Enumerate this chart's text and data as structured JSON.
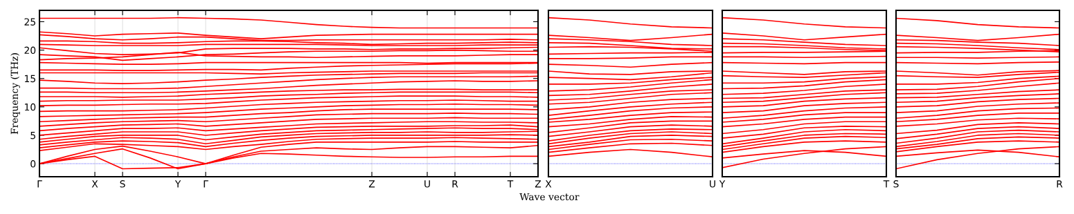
{
  "chart_data": [
    {
      "type": "line",
      "ylabel": "Frequency (THz)",
      "xlabel": "Wave vector",
      "ylim": [
        -2.3,
        27
      ],
      "yticks": [
        0,
        5,
        10,
        15,
        20,
        25
      ],
      "categories": [
        "Γ",
        null,
        "X",
        "S",
        null,
        "Y",
        "Γ",
        null,
        null,
        null,
        null,
        null,
        "Z",
        null,
        "U",
        "R",
        null,
        "T",
        "Z"
      ],
      "grid": "x",
      "ref_lines": [
        {
          "axis": "y",
          "value": 0,
          "color": "#0000ff",
          "line_style": "dotted"
        }
      ],
      "series": [
        {
          "color": "#ff0000",
          "values": [
            0,
            0.7,
            1.3,
            -0.9,
            -0.8,
            -0.7,
            0,
            1.0,
            1.8,
            1.7,
            1.5,
            1.3,
            1.2,
            1.1,
            1.1,
            1.2,
            1.2,
            1.3,
            1.3
          ]
        },
        {
          "color": "#ff0000",
          "values": [
            0,
            0.9,
            1.8,
            2.6,
            1.0,
            -0.9,
            0,
            1.2,
            2.2,
            2.5,
            2.8,
            2.6,
            2.5,
            2.8,
            3.0,
            3.0,
            2.9,
            2.8,
            3.2
          ]
        },
        {
          "color": "#ff0000",
          "values": [
            0,
            1.3,
            2.5,
            3.1,
            2.2,
            1.2,
            0,
            1.5,
            2.9,
            3.4,
            3.8,
            3.8,
            3.8,
            3.8,
            3.8,
            3.9,
            3.8,
            3.8,
            3.8
          ]
        },
        {
          "color": "#ff0000",
          "values": [
            2.3,
            2.9,
            3.5,
            3.4,
            3.2,
            3.0,
            2.5,
            3.0,
            3.4,
            3.9,
            4.3,
            4.4,
            4.5,
            4.5,
            4.5,
            4.6,
            4.5,
            4.4,
            4.3
          ]
        },
        {
          "color": "#ff0000",
          "values": [
            2.8,
            3.3,
            3.8,
            4.0,
            3.9,
            3.7,
            3.0,
            3.6,
            4.1,
            4.5,
            4.8,
            4.9,
            5.0,
            5.0,
            5.0,
            5.0,
            5.0,
            5.1,
            5.0
          ]
        },
        {
          "color": "#ff0000",
          "values": [
            3.3,
            3.8,
            4.2,
            4.6,
            4.5,
            4.3,
            3.5,
            4.1,
            4.7,
            5.0,
            5.3,
            5.4,
            5.5,
            5.5,
            5.6,
            5.5,
            5.5,
            5.6,
            5.7
          ]
        },
        {
          "color": "#ff0000",
          "values": [
            3.8,
            4.3,
            4.8,
            5.0,
            5.0,
            5.0,
            4.2,
            4.7,
            5.2,
            5.5,
            5.8,
            5.9,
            6.0,
            6.1,
            6.2,
            6.3,
            6.2,
            6.2,
            6.0
          ]
        },
        {
          "color": "#ff0000",
          "values": [
            4.3,
            4.8,
            5.2,
            5.6,
            5.6,
            5.6,
            5.0,
            5.4,
            5.8,
            6.1,
            6.4,
            6.5,
            6.6,
            6.6,
            6.6,
            6.7,
            6.7,
            6.8,
            6.5
          ]
        },
        {
          "color": "#ff0000",
          "values": [
            5.0,
            5.4,
            5.8,
            6.2,
            6.2,
            6.3,
            5.8,
            6.1,
            6.4,
            6.7,
            7.0,
            7.1,
            7.2,
            7.3,
            7.4,
            7.4,
            7.3,
            7.3,
            7.2
          ]
        },
        {
          "color": "#ff0000",
          "values": [
            5.8,
            6.2,
            6.5,
            6.8,
            6.9,
            7.0,
            6.6,
            6.9,
            7.2,
            7.5,
            7.8,
            7.9,
            8.0,
            8.0,
            8.0,
            8.1,
            8.0,
            8.0,
            8.0
          ]
        },
        {
          "color": "#ff0000",
          "values": [
            6.6,
            6.9,
            7.2,
            7.4,
            7.5,
            7.6,
            7.4,
            7.7,
            8.0,
            8.3,
            8.6,
            8.7,
            8.8,
            8.8,
            8.8,
            8.9,
            8.8,
            8.8,
            8.7
          ]
        },
        {
          "color": "#ff0000",
          "values": [
            7.4,
            7.6,
            7.8,
            8.0,
            8.1,
            8.2,
            8.2,
            8.5,
            8.8,
            9.0,
            9.3,
            9.5,
            9.6,
            9.6,
            9.6,
            9.6,
            9.6,
            9.6,
            9.5
          ]
        },
        {
          "color": "#ff0000",
          "values": [
            8.3,
            8.4,
            8.5,
            8.6,
            8.7,
            8.8,
            9.0,
            9.3,
            9.6,
            9.8,
            10.0,
            10.2,
            10.3,
            10.4,
            10.4,
            10.5,
            10.4,
            10.4,
            10.3
          ]
        },
        {
          "color": "#ff0000",
          "values": [
            9.2,
            9.3,
            9.3,
            9.3,
            9.4,
            9.5,
            9.8,
            10.1,
            10.4,
            10.6,
            10.8,
            10.9,
            11.0,
            11.1,
            11.1,
            11.2,
            11.1,
            11.0,
            11.0
          ]
        },
        {
          "color": "#ff0000",
          "values": [
            10.2,
            10.3,
            10.3,
            10.4,
            10.5,
            10.5,
            10.6,
            10.9,
            11.2,
            11.4,
            11.6,
            11.7,
            11.8,
            11.9,
            11.9,
            11.9,
            11.8,
            11.8,
            11.7
          ]
        },
        {
          "color": "#ff0000",
          "values": [
            11.0,
            11.1,
            11.1,
            11.2,
            11.2,
            11.2,
            11.4,
            11.6,
            11.9,
            12.1,
            12.2,
            12.4,
            12.5,
            12.6,
            12.6,
            12.6,
            12.6,
            12.6,
            12.5
          ]
        },
        {
          "color": "#ff0000",
          "values": [
            11.8,
            11.8,
            11.8,
            11.7,
            11.8,
            11.9,
            12.2,
            12.4,
            12.6,
            12.8,
            12.9,
            13.0,
            13.0,
            13.1,
            13.1,
            13.1,
            13.0,
            13.0,
            13.0
          ]
        },
        {
          "color": "#ff0000",
          "values": [
            12.6,
            12.6,
            12.5,
            12.5,
            12.5,
            12.6,
            12.8,
            13.0,
            13.2,
            13.5,
            13.8,
            14.0,
            14.2,
            14.4,
            14.5,
            14.6,
            14.5,
            14.5,
            14.6
          ]
        },
        {
          "color": "#ff0000",
          "values": [
            13.3,
            13.3,
            13.2,
            13.2,
            13.2,
            13.3,
            13.6,
            13.9,
            14.2,
            14.5,
            14.8,
            15.0,
            15.2,
            15.3,
            15.3,
            15.3,
            15.3,
            15.3,
            15.4
          ]
        },
        {
          "color": "#ff0000",
          "values": [
            14.7,
            14.5,
            14.2,
            14.1,
            14.2,
            14.4,
            14.7,
            14.9,
            15.2,
            15.4,
            15.6,
            15.7,
            15.8,
            15.9,
            15.9,
            15.9,
            16.0,
            16.0,
            16.0
          ]
        },
        {
          "color": "#ff0000",
          "values": [
            16.0,
            16.0,
            16.0,
            16.0,
            16.0,
            16.0,
            16.0,
            15.9,
            15.8,
            16.0,
            16.1,
            16.2,
            16.3,
            16.3,
            16.3,
            16.3,
            16.3,
            16.3,
            16.3
          ]
        },
        {
          "color": "#ff0000",
          "values": [
            16.5,
            16.5,
            16.5,
            16.4,
            16.4,
            16.5,
            16.6,
            16.6,
            16.5,
            16.8,
            17.0,
            17.2,
            17.3,
            17.4,
            17.5,
            17.6,
            17.6,
            17.6,
            17.7
          ]
        },
        {
          "color": "#ff0000",
          "values": [
            17.8,
            17.7,
            17.6,
            17.5,
            17.5,
            17.6,
            17.8,
            17.8,
            17.8,
            17.8,
            17.8,
            17.8,
            17.8,
            17.8,
            17.7,
            17.8,
            17.8,
            17.8,
            17.8
          ]
        },
        {
          "color": "#ff0000",
          "values": [
            18.3,
            18.5,
            18.6,
            18.8,
            19.2,
            19.6,
            19.0,
            18.9,
            18.8,
            18.8,
            18.7,
            18.8,
            18.9,
            19.0,
            19.0,
            19.0,
            19.1,
            19.2,
            19.2
          ]
        },
        {
          "color": "#ff0000",
          "values": [
            19.2,
            19.0,
            18.8,
            18.2,
            18.5,
            18.8,
            19.2,
            19.3,
            19.5,
            19.7,
            19.8,
            19.8,
            19.8,
            19.9,
            19.9,
            20.0,
            19.9,
            19.8,
            19.8
          ]
        },
        {
          "color": "#ff0000",
          "values": [
            20.4,
            19.9,
            19.4,
            19.2,
            19.3,
            19.5,
            20.2,
            20.3,
            20.3,
            20.3,
            20.2,
            20.2,
            20.1,
            20.2,
            20.2,
            20.3,
            20.3,
            20.4,
            20.5
          ]
        },
        {
          "color": "#ff0000",
          "values": [
            21.0,
            20.9,
            20.8,
            20.8,
            20.8,
            20.8,
            21.0,
            21.0,
            21.0,
            21.0,
            21.0,
            20.9,
            20.8,
            20.8,
            20.8,
            20.8,
            20.9,
            20.9,
            20.9
          ]
        },
        {
          "color": "#ff0000",
          "values": [
            21.6,
            21.6,
            21.5,
            21.2,
            21.2,
            21.3,
            21.5,
            21.6,
            21.6,
            21.5,
            21.3,
            21.2,
            21.0,
            21.1,
            21.2,
            21.2,
            21.3,
            21.4,
            21.3
          ]
        },
        {
          "color": "#ff0000",
          "values": [
            22.7,
            22.4,
            22.0,
            21.8,
            22.0,
            22.3,
            22.3,
            22.0,
            21.7,
            21.7,
            21.8,
            21.8,
            21.8,
            21.8,
            21.8,
            21.8,
            21.8,
            21.9,
            21.8
          ]
        },
        {
          "color": "#ff0000",
          "values": [
            23.2,
            22.9,
            22.5,
            22.8,
            22.9,
            23.0,
            22.6,
            22.3,
            22.0,
            22.3,
            22.6,
            22.7,
            22.8,
            22.8,
            22.8,
            22.8,
            22.8,
            22.8,
            22.8
          ]
        },
        {
          "color": "#ff0000",
          "values": [
            25.6,
            25.6,
            25.6,
            25.6,
            25.6,
            25.7,
            25.6,
            25.5,
            25.3,
            24.9,
            24.5,
            24.2,
            24.0,
            23.9,
            23.9,
            23.9,
            23.9,
            23.9,
            23.9
          ]
        }
      ]
    },
    {
      "type": "line",
      "ylim": [
        -2.3,
        27
      ],
      "yticks": [
        0,
        5,
        10,
        15,
        20,
        25
      ],
      "tick_labels": "x",
      "categories": [
        "X",
        null,
        null,
        null,
        "U"
      ],
      "ref_lines": [
        {
          "axis": "y",
          "value": 0,
          "color": "#0000ff",
          "line_style": "dotted"
        }
      ],
      "series": [
        {
          "color": "#ff0000",
          "values": [
            1.3,
            2.0,
            2.5,
            2.0,
            1.2
          ]
        },
        {
          "color": "#ff0000",
          "values": [
            2.0,
            2.8,
            3.5,
            3.6,
            3.2
          ]
        },
        {
          "color": "#ff0000",
          "values": [
            2.5,
            3.4,
            4.2,
            4.3,
            4.0
          ]
        },
        {
          "color": "#ff0000",
          "values": [
            3.0,
            3.8,
            4.8,
            5.0,
            4.8
          ]
        },
        {
          "color": "#ff0000",
          "values": [
            3.5,
            4.5,
            5.3,
            5.6,
            5.3
          ]
        },
        {
          "color": "#ff0000",
          "values": [
            4.0,
            5.0,
            5.8,
            6.1,
            6.0
          ]
        },
        {
          "color": "#ff0000",
          "values": [
            4.8,
            5.6,
            6.5,
            6.8,
            6.6
          ]
        },
        {
          "color": "#ff0000",
          "values": [
            5.5,
            6.3,
            7.2,
            7.5,
            7.5
          ]
        },
        {
          "color": "#ff0000",
          "values": [
            6.5,
            7.0,
            7.8,
            8.3,
            8.2
          ]
        },
        {
          "color": "#ff0000",
          "values": [
            7.3,
            7.8,
            8.5,
            9.0,
            9.1
          ]
        },
        {
          "color": "#ff0000",
          "values": [
            7.8,
            8.5,
            9.3,
            9.8,
            10.0
          ]
        },
        {
          "color": "#ff0000",
          "values": [
            8.5,
            9.3,
            10.0,
            10.5,
            10.8
          ]
        },
        {
          "color": "#ff0000",
          "values": [
            9.5,
            10.0,
            10.8,
            11.3,
            11.5
          ]
        },
        {
          "color": "#ff0000",
          "values": [
            10.5,
            10.8,
            11.5,
            12.2,
            12.5
          ]
        },
        {
          "color": "#ff0000",
          "values": [
            11.2,
            11.5,
            12.2,
            12.8,
            13.0
          ]
        },
        {
          "color": "#ff0000",
          "values": [
            12.0,
            12.2,
            12.8,
            13.5,
            14.0
          ]
        },
        {
          "color": "#ff0000",
          "values": [
            12.8,
            13.0,
            13.5,
            14.2,
            14.8
          ]
        },
        {
          "color": "#ff0000",
          "values": [
            14.0,
            14.0,
            14.2,
            14.8,
            15.2
          ]
        },
        {
          "color": "#ff0000",
          "values": [
            15.2,
            15.0,
            14.8,
            15.3,
            16.0
          ]
        },
        {
          "color": "#ff0000",
          "values": [
            16.3,
            15.8,
            15.7,
            16.2,
            16.3
          ]
        },
        {
          "color": "#ff0000",
          "values": [
            17.5,
            17.3,
            17.0,
            17.5,
            17.8
          ]
        },
        {
          "color": "#ff0000",
          "values": [
            18.5,
            18.5,
            18.6,
            18.8,
            18.8
          ]
        },
        {
          "color": "#ff0000",
          "values": [
            19.3,
            19.4,
            19.5,
            19.5,
            19.6
          ]
        },
        {
          "color": "#ff0000",
          "values": [
            20.5,
            20.6,
            20.5,
            20.2,
            19.8
          ]
        },
        {
          "color": "#ff0000",
          "values": [
            21.3,
            21.2,
            20.8,
            20.3,
            20.2
          ]
        },
        {
          "color": "#ff0000",
          "values": [
            22.0,
            21.8,
            21.5,
            21.0,
            20.8
          ]
        },
        {
          "color": "#ff0000",
          "values": [
            22.6,
            22.2,
            21.7,
            22.2,
            22.8
          ]
        },
        {
          "color": "#ff0000",
          "values": [
            25.7,
            25.3,
            24.6,
            24.1,
            23.9
          ]
        }
      ]
    },
    {
      "type": "line",
      "ylim": [
        -2.3,
        27
      ],
      "yticks": [
        0,
        5,
        10,
        15,
        20,
        25
      ],
      "tick_labels": "x",
      "categories": [
        "Y",
        null,
        null,
        null,
        "T"
      ],
      "ref_lines": [
        {
          "axis": "y",
          "value": 0,
          "color": "#0000ff",
          "line_style": "dotted"
        }
      ],
      "series": [
        {
          "color": "#ff0000",
          "values": [
            -0.7,
            0.8,
            1.8,
            2.6,
            3.0
          ]
        },
        {
          "color": "#ff0000",
          "values": [
            1.0,
            1.7,
            2.3,
            2.0,
            1.3
          ]
        },
        {
          "color": "#ff0000",
          "values": [
            2.0,
            3.0,
            3.8,
            4.0,
            3.8
          ]
        },
        {
          "color": "#ff0000",
          "values": [
            2.5,
            3.5,
            4.5,
            4.8,
            4.6
          ]
        },
        {
          "color": "#ff0000",
          "values": [
            3.0,
            4.0,
            5.0,
            5.3,
            5.2
          ]
        },
        {
          "color": "#ff0000",
          "values": [
            3.5,
            4.5,
            5.6,
            6.0,
            5.8
          ]
        },
        {
          "color": "#ff0000",
          "values": [
            4.5,
            5.2,
            6.3,
            6.6,
            6.5
          ]
        },
        {
          "color": "#ff0000",
          "values": [
            5.3,
            6.0,
            7.0,
            7.4,
            7.4
          ]
        },
        {
          "color": "#ff0000",
          "values": [
            6.5,
            7.0,
            7.8,
            8.2,
            8.2
          ]
        },
        {
          "color": "#ff0000",
          "values": [
            7.3,
            7.8,
            8.6,
            9.0,
            9.0
          ]
        },
        {
          "color": "#ff0000",
          "values": [
            8.0,
            8.5,
            9.3,
            9.8,
            10.0
          ]
        },
        {
          "color": "#ff0000",
          "values": [
            9.0,
            9.3,
            10.2,
            10.6,
            10.8
          ]
        },
        {
          "color": "#ff0000",
          "values": [
            10.0,
            10.2,
            11.0,
            11.4,
            11.6
          ]
        },
        {
          "color": "#ff0000",
          "values": [
            10.8,
            11.0,
            11.6,
            12.2,
            12.5
          ]
        },
        {
          "color": "#ff0000",
          "values": [
            11.5,
            11.6,
            12.2,
            12.8,
            13.0
          ]
        },
        {
          "color": "#ff0000",
          "values": [
            12.2,
            12.4,
            12.9,
            13.6,
            14.0
          ]
        },
        {
          "color": "#ff0000",
          "values": [
            13.2,
            13.3,
            13.7,
            14.4,
            14.8
          ]
        },
        {
          "color": "#ff0000",
          "values": [
            14.2,
            14.2,
            14.4,
            15.0,
            15.3
          ]
        },
        {
          "color": "#ff0000",
          "values": [
            15.5,
            15.3,
            15.2,
            15.6,
            16.0
          ]
        },
        {
          "color": "#ff0000",
          "values": [
            16.3,
            16.0,
            15.7,
            16.2,
            16.3
          ]
        },
        {
          "color": "#ff0000",
          "values": [
            17.8,
            17.7,
            17.6,
            17.8,
            17.8
          ]
        },
        {
          "color": "#ff0000",
          "values": [
            18.8,
            18.8,
            18.7,
            18.8,
            18.9
          ]
        },
        {
          "color": "#ff0000",
          "values": [
            19.5,
            19.6,
            19.6,
            19.7,
            19.8
          ]
        },
        {
          "color": "#ff0000",
          "values": [
            20.6,
            20.6,
            20.4,
            20.1,
            19.9
          ]
        },
        {
          "color": "#ff0000",
          "values": [
            21.2,
            21.1,
            20.8,
            20.4,
            20.2
          ]
        },
        {
          "color": "#ff0000",
          "values": [
            22.0,
            21.8,
            21.4,
            21.0,
            20.8
          ]
        },
        {
          "color": "#ff0000",
          "values": [
            23.0,
            22.5,
            21.8,
            22.3,
            22.8
          ]
        },
        {
          "color": "#ff0000",
          "values": [
            25.7,
            25.3,
            24.6,
            24.1,
            23.9
          ]
        }
      ]
    },
    {
      "type": "line",
      "ylim": [
        -2.3,
        27
      ],
      "yticks": [
        0,
        5,
        10,
        15,
        20,
        25
      ],
      "tick_labels": "x",
      "categories": [
        "S",
        null,
        null,
        null,
        "R"
      ],
      "ref_lines": [
        {
          "axis": "y",
          "value": 0,
          "color": "#0000ff",
          "line_style": "dotted"
        }
      ],
      "series": [
        {
          "color": "#ff0000",
          "values": [
            -0.9,
            0.7,
            1.8,
            2.6,
            3.0
          ]
        },
        {
          "color": "#ff0000",
          "values": [
            1.3,
            1.9,
            2.4,
            2.0,
            1.2
          ]
        },
        {
          "color": "#ff0000",
          "values": [
            2.1,
            3.0,
            3.8,
            4.0,
            3.8
          ]
        },
        {
          "color": "#ff0000",
          "values": [
            2.6,
            3.4,
            4.4,
            4.7,
            4.5
          ]
        },
        {
          "color": "#ff0000",
          "values": [
            3.0,
            3.9,
            5.0,
            5.3,
            5.0
          ]
        },
        {
          "color": "#ff0000",
          "values": [
            3.6,
            4.5,
            5.6,
            5.9,
            5.6
          ]
        },
        {
          "color": "#ff0000",
          "values": [
            4.4,
            5.2,
            6.2,
            6.5,
            6.2
          ]
        },
        {
          "color": "#ff0000",
          "values": [
            5.3,
            5.9,
            6.9,
            7.2,
            7.0
          ]
        },
        {
          "color": "#ff0000",
          "values": [
            6.6,
            7.0,
            7.7,
            8.0,
            7.9
          ]
        },
        {
          "color": "#ff0000",
          "values": [
            7.4,
            7.8,
            8.5,
            8.9,
            8.9
          ]
        },
        {
          "color": "#ff0000",
          "values": [
            8.0,
            8.5,
            9.3,
            9.7,
            9.8
          ]
        },
        {
          "color": "#ff0000",
          "values": [
            9.0,
            9.3,
            10.1,
            10.5,
            10.7
          ]
        },
        {
          "color": "#ff0000",
          "values": [
            10.0,
            10.2,
            10.9,
            11.3,
            11.5
          ]
        },
        {
          "color": "#ff0000",
          "values": [
            10.8,
            11.0,
            11.6,
            12.0,
            12.3
          ]
        },
        {
          "color": "#ff0000",
          "values": [
            11.6,
            11.7,
            12.2,
            12.7,
            13.0
          ]
        },
        {
          "color": "#ff0000",
          "values": [
            12.3,
            12.4,
            12.9,
            13.6,
            14.2
          ]
        },
        {
          "color": "#ff0000",
          "values": [
            13.0,
            13.1,
            13.6,
            14.4,
            15.0
          ]
        },
        {
          "color": "#ff0000",
          "values": [
            14.0,
            14.0,
            14.3,
            15.0,
            15.4
          ]
        },
        {
          "color": "#ff0000",
          "values": [
            15.5,
            15.3,
            15.2,
            15.7,
            16.1
          ]
        },
        {
          "color": "#ff0000",
          "values": [
            16.3,
            16.0,
            15.6,
            16.2,
            16.4
          ]
        },
        {
          "color": "#ff0000",
          "values": [
            17.8,
            17.7,
            17.6,
            17.8,
            17.9
          ]
        },
        {
          "color": "#ff0000",
          "values": [
            18.7,
            18.7,
            18.6,
            18.7,
            18.8
          ]
        },
        {
          "color": "#ff0000",
          "values": [
            19.5,
            19.6,
            19.6,
            19.8,
            19.9
          ]
        },
        {
          "color": "#ff0000",
          "values": [
            20.6,
            20.5,
            20.3,
            20.0,
            19.7
          ]
        },
        {
          "color": "#ff0000",
          "values": [
            21.2,
            21.1,
            20.8,
            20.4,
            20.1
          ]
        },
        {
          "color": "#ff0000",
          "values": [
            21.8,
            21.7,
            21.4,
            21.2,
            20.8
          ]
        },
        {
          "color": "#ff0000",
          "values": [
            22.6,
            22.2,
            21.7,
            22.2,
            22.8
          ]
        },
        {
          "color": "#ff0000",
          "values": [
            25.6,
            25.2,
            24.5,
            24.1,
            23.9
          ]
        }
      ]
    }
  ]
}
